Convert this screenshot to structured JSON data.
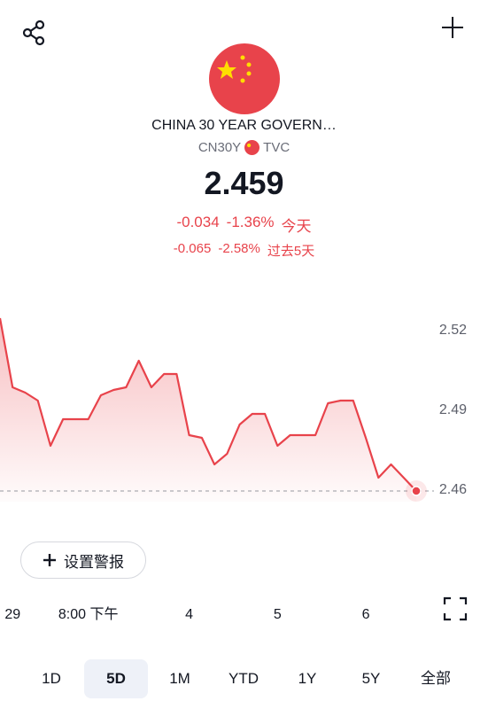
{
  "header": {
    "title": "CHINA 30 YEAR GOVERN…",
    "symbol": "CN30Y",
    "exchange": "TVC",
    "price": "2.459",
    "change_today": {
      "change": "-0.034",
      "percent": "-1.36%",
      "period": "今天"
    },
    "change_5d": {
      "change": "-0.065",
      "percent": "-2.58%",
      "period": "过去5天"
    }
  },
  "alert_button": "设置警报",
  "ranges": [
    "1D",
    "5D",
    "1M",
    "YTD",
    "1Y",
    "5Y",
    "全部"
  ],
  "selected_range": "5D",
  "chart_data": {
    "type": "area",
    "color": "#e8434b",
    "values": [
      2.524,
      2.498,
      2.496,
      2.493,
      2.476,
      2.486,
      2.486,
      2.486,
      2.495,
      2.497,
      2.498,
      2.508,
      2.498,
      2.503,
      2.503,
      2.48,
      2.479,
      2.469,
      2.473,
      2.484,
      2.488,
      2.488,
      2.476,
      2.48,
      2.48,
      2.48,
      2.492,
      2.493,
      2.493,
      2.479,
      2.464,
      2.469,
      2.464,
      2.459
    ],
    "xlim": [
      0,
      33
    ],
    "xticks": [
      {
        "value": 1,
        "label": "29"
      },
      {
        "value": 7,
        "label": "8:00 下午"
      },
      {
        "value": 15,
        "label": "4"
      },
      {
        "value": 22,
        "label": "5"
      },
      {
        "value": 29,
        "label": "6"
      }
    ],
    "ylim": [
      2.455,
      2.525
    ],
    "yticks": [
      2.46,
      2.49,
      2.52
    ]
  }
}
